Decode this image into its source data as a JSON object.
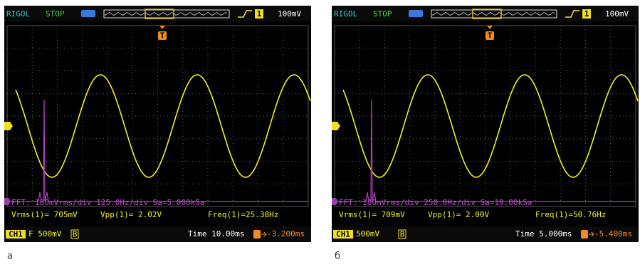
{
  "panels": [
    {
      "caption": "а",
      "status": {
        "brand": "RIGOL",
        "state": "STOP",
        "trigger_channel": "1",
        "trigger_level": "100mV"
      },
      "marker": "T",
      "fft": "FFT: 100mVrms/div 125.0Hz/div Sa=5.000kSa",
      "measurements": [
        "Vrms(1)= 705mV",
        "Vpp(1)= 2.02V",
        "Freq(1)=25.38Hz"
      ],
      "footer": {
        "channel": "CH1",
        "scale": "F 500mV",
        "bandwidth": "B",
        "time": "Time 10.00ms",
        "offset": "-3.200ms"
      }
    },
    {
      "caption": "б",
      "status": {
        "brand": "RIGOL",
        "state": "STOP",
        "trigger_channel": "1",
        "trigger_level": "100mV"
      },
      "marker": "T",
      "fft": "FFT: 100mVrms/div 250.0Hz/div Sa=10.00kSa",
      "measurements": [
        "Vrms(1)= 709mV",
        "Vpp(1)= 2.00V",
        "Freq(1)=50.76Hz"
      ],
      "footer": {
        "channel": "CH1",
        "scale": "500mV",
        "bandwidth": "B",
        "time": "Time 5.000ms",
        "offset": "-5.400ms"
      }
    }
  ]
}
